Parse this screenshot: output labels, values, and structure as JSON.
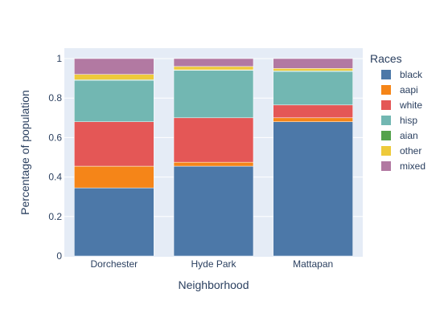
{
  "chart_data": {
    "type": "bar",
    "stacked": true,
    "title": "",
    "xlabel": "Neighborhood",
    "ylabel": "Percentage of population",
    "ylim": [
      0,
      1
    ],
    "yticks": [
      "0",
      "0.2",
      "0.4",
      "0.6",
      "0.8",
      "1"
    ],
    "grid": true,
    "legend_title": "Races",
    "legend_position": "right",
    "categories": [
      "Dorchester",
      "Hyde Park",
      "Mattapan"
    ],
    "series": [
      {
        "name": "black",
        "color": "#4c78a8",
        "values": [
          0.345,
          0.455,
          0.68
        ]
      },
      {
        "name": "aapi",
        "color": "#f58518",
        "values": [
          0.11,
          0.02,
          0.02
        ]
      },
      {
        "name": "white",
        "color": "#e45756",
        "values": [
          0.225,
          0.225,
          0.065
        ]
      },
      {
        "name": "hisp",
        "color": "#72b7b2",
        "values": [
          0.21,
          0.24,
          0.17
        ]
      },
      {
        "name": "aian",
        "color": "#54a24b",
        "values": [
          0.003,
          0.003,
          0.003
        ]
      },
      {
        "name": "other",
        "color": "#eeca3b",
        "values": [
          0.027,
          0.017,
          0.012
        ]
      },
      {
        "name": "mixed",
        "color": "#b279a2",
        "values": [
          0.08,
          0.04,
          0.05
        ]
      }
    ]
  }
}
